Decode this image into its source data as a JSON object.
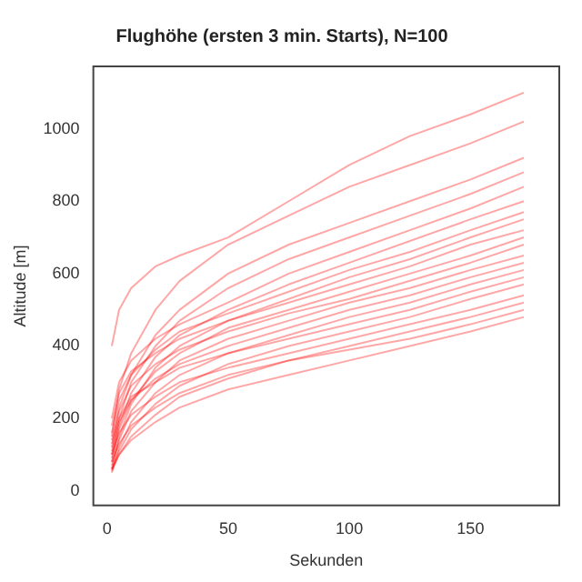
{
  "chart_data": {
    "type": "line",
    "title": "Flughöhe (ersten 3 min. Starts), N=100",
    "xlabel": "Sekunden",
    "ylabel": "Altitude [m]",
    "x": [
      2,
      5,
      10,
      20,
      30,
      50,
      75,
      100,
      125,
      150,
      172
    ],
    "xlim": [
      -6,
      187
    ],
    "xticks": [
      0,
      50,
      100,
      150
    ],
    "ylim": [
      -43,
      1175
    ],
    "yticks": [
      0,
      200,
      400,
      600,
      800,
      1000
    ],
    "grid": false,
    "legend": false,
    "marker": "none",
    "line_style": "solid",
    "series": [
      {
        "color": "#ff0000",
        "values": [
          400,
          500,
          560,
          620,
          650,
          700,
          800,
          900,
          980,
          1040,
          1100
        ]
      },
      {
        "color": "#ff0000",
        "values": [
          150,
          280,
          380,
          500,
          580,
          680,
          760,
          840,
          900,
          960,
          1020
        ]
      },
      {
        "color": "#ff0000",
        "values": [
          120,
          230,
          320,
          430,
          500,
          600,
          680,
          740,
          800,
          860,
          920
        ]
      },
      {
        "color": "#ff0000",
        "values": [
          100,
          200,
          300,
          400,
          470,
          560,
          640,
          700,
          760,
          820,
          880
        ]
      },
      {
        "color": "#ff0000",
        "values": [
          200,
          300,
          360,
          420,
          460,
          520,
          600,
          660,
          720,
          780,
          840
        ]
      },
      {
        "color": "#ff0000",
        "values": [
          80,
          180,
          270,
          370,
          430,
          500,
          570,
          630,
          690,
          750,
          800
        ]
      },
      {
        "color": "#ff0000",
        "values": [
          160,
          250,
          320,
          390,
          440,
          490,
          550,
          610,
          660,
          720,
          770
        ]
      },
      {
        "color": "#ff0000",
        "values": [
          60,
          150,
          240,
          340,
          400,
          470,
          530,
          590,
          640,
          700,
          750
        ]
      },
      {
        "color": "#ff0000",
        "values": [
          180,
          270,
          330,
          380,
          420,
          470,
          520,
          570,
          620,
          680,
          720
        ]
      },
      {
        "color": "#ff0000",
        "values": [
          90,
          170,
          250,
          330,
          380,
          450,
          500,
          550,
          600,
          650,
          700
        ]
      },
      {
        "color": "#ff0000",
        "values": [
          140,
          220,
          290,
          350,
          390,
          440,
          490,
          530,
          580,
          630,
          680
        ]
      },
      {
        "color": "#ff0000",
        "values": [
          70,
          140,
          220,
          300,
          360,
          420,
          470,
          520,
          560,
          610,
          650
        ]
      },
      {
        "color": "#ff0000",
        "values": [
          110,
          190,
          250,
          310,
          350,
          400,
          450,
          500,
          540,
          590,
          630
        ]
      },
      {
        "color": "#ff0000",
        "values": [
          50,
          120,
          190,
          270,
          320,
          380,
          430,
          480,
          520,
          570,
          610
        ]
      },
      {
        "color": "#ff0000",
        "values": [
          130,
          200,
          260,
          300,
          340,
          380,
          420,
          460,
          500,
          550,
          590
        ]
      },
      {
        "color": "#ff0000",
        "values": [
          60,
          110,
          170,
          240,
          290,
          350,
          400,
          440,
          480,
          530,
          570
        ]
      },
      {
        "color": "#ff0000",
        "values": [
          100,
          160,
          210,
          260,
          300,
          340,
          380,
          420,
          460,
          500,
          540
        ]
      },
      {
        "color": "#ff0000",
        "values": [
          55,
          100,
          150,
          210,
          260,
          310,
          360,
          400,
          440,
          480,
          520
        ]
      },
      {
        "color": "#ff0000",
        "values": [
          80,
          130,
          180,
          230,
          270,
          320,
          360,
          390,
          420,
          460,
          500
        ]
      },
      {
        "color": "#ff0000",
        "values": [
          60,
          100,
          140,
          190,
          230,
          280,
          320,
          360,
          400,
          440,
          480
        ]
      }
    ]
  }
}
